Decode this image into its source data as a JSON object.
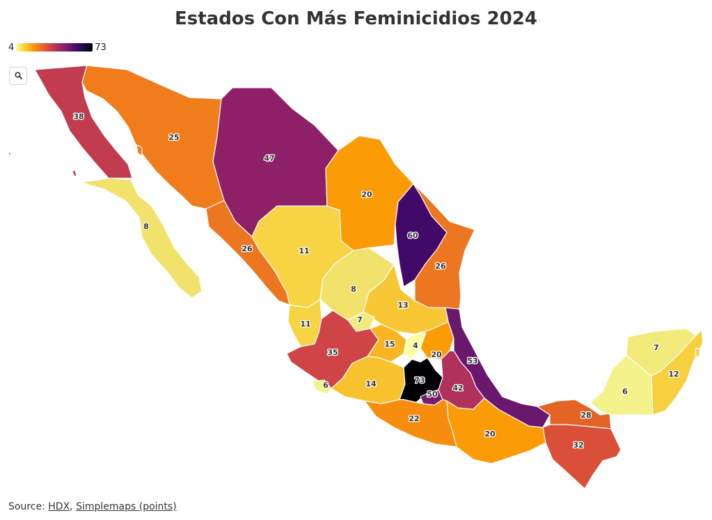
{
  "title": "Estados Con Más Feminicidios 2024",
  "legend": {
    "min_label": "4",
    "max_label": "73",
    "scale": "inferno"
  },
  "controls": {
    "zoom_icon": "search-icon"
  },
  "source": {
    "prefix": "Source: ",
    "link1": "HDX",
    "separator": ", ",
    "link2": "Simplemaps (points)"
  },
  "map_data": {
    "colorscale": "inferno",
    "range": [
      4,
      73
    ],
    "values": [
      {
        "id": "bc",
        "value": "38"
      },
      {
        "id": "bcs",
        "value": "8"
      },
      {
        "id": "son",
        "value": "25"
      },
      {
        "id": "chih",
        "value": "47"
      },
      {
        "id": "coah",
        "value": "20"
      },
      {
        "id": "nl",
        "value": "60"
      },
      {
        "id": "tamps",
        "value": "26"
      },
      {
        "id": "sin",
        "value": "26"
      },
      {
        "id": "dgo",
        "value": "11"
      },
      {
        "id": "zac",
        "value": "8"
      },
      {
        "id": "slp",
        "value": "13"
      },
      {
        "id": "nay",
        "value": "11"
      },
      {
        "id": "ags",
        "value": "7"
      },
      {
        "id": "jal",
        "value": "35"
      },
      {
        "id": "gto",
        "value": "15"
      },
      {
        "id": "qro",
        "value": "4"
      },
      {
        "id": "hgo",
        "value": "20"
      },
      {
        "id": "ver",
        "value": "53"
      },
      {
        "id": "col",
        "value": "6"
      },
      {
        "id": "mich",
        "value": "14"
      },
      {
        "id": "mex",
        "value": "73"
      },
      {
        "id": "mor",
        "value": "50"
      },
      {
        "id": "pue",
        "value": "42"
      },
      {
        "id": "gro",
        "value": "22"
      },
      {
        "id": "oax",
        "value": "20"
      },
      {
        "id": "chis",
        "value": "32"
      },
      {
        "id": "tab",
        "value": "28"
      },
      {
        "id": "camp",
        "value": "6"
      },
      {
        "id": "yuc",
        "value": "7"
      },
      {
        "id": "qroo",
        "value": "12"
      }
    ],
    "colors": {
      "v4": "#fcffa4",
      "v6": "#f4f28a",
      "v7": "#f2ea7a",
      "v8": "#f1e26b",
      "v11": "#f6d443",
      "v12": "#f6d03f",
      "v13": "#f8c735",
      "v14": "#f8c12e",
      "v15": "#f9b622",
      "v20": "#fb9b06",
      "v22": "#f78d0f",
      "v25": "#f07c1c",
      "v26": "#ed7620",
      "v28": "#e46425",
      "v32": "#d94f37",
      "v35": "#cf4446",
      "v38": "#c23c4f",
      "v42": "#b0315c",
      "v47": "#8e2068",
      "v50": "#781c6d",
      "v53": "#6a176e",
      "v60": "#420a68",
      "v73": "#000004"
    }
  }
}
